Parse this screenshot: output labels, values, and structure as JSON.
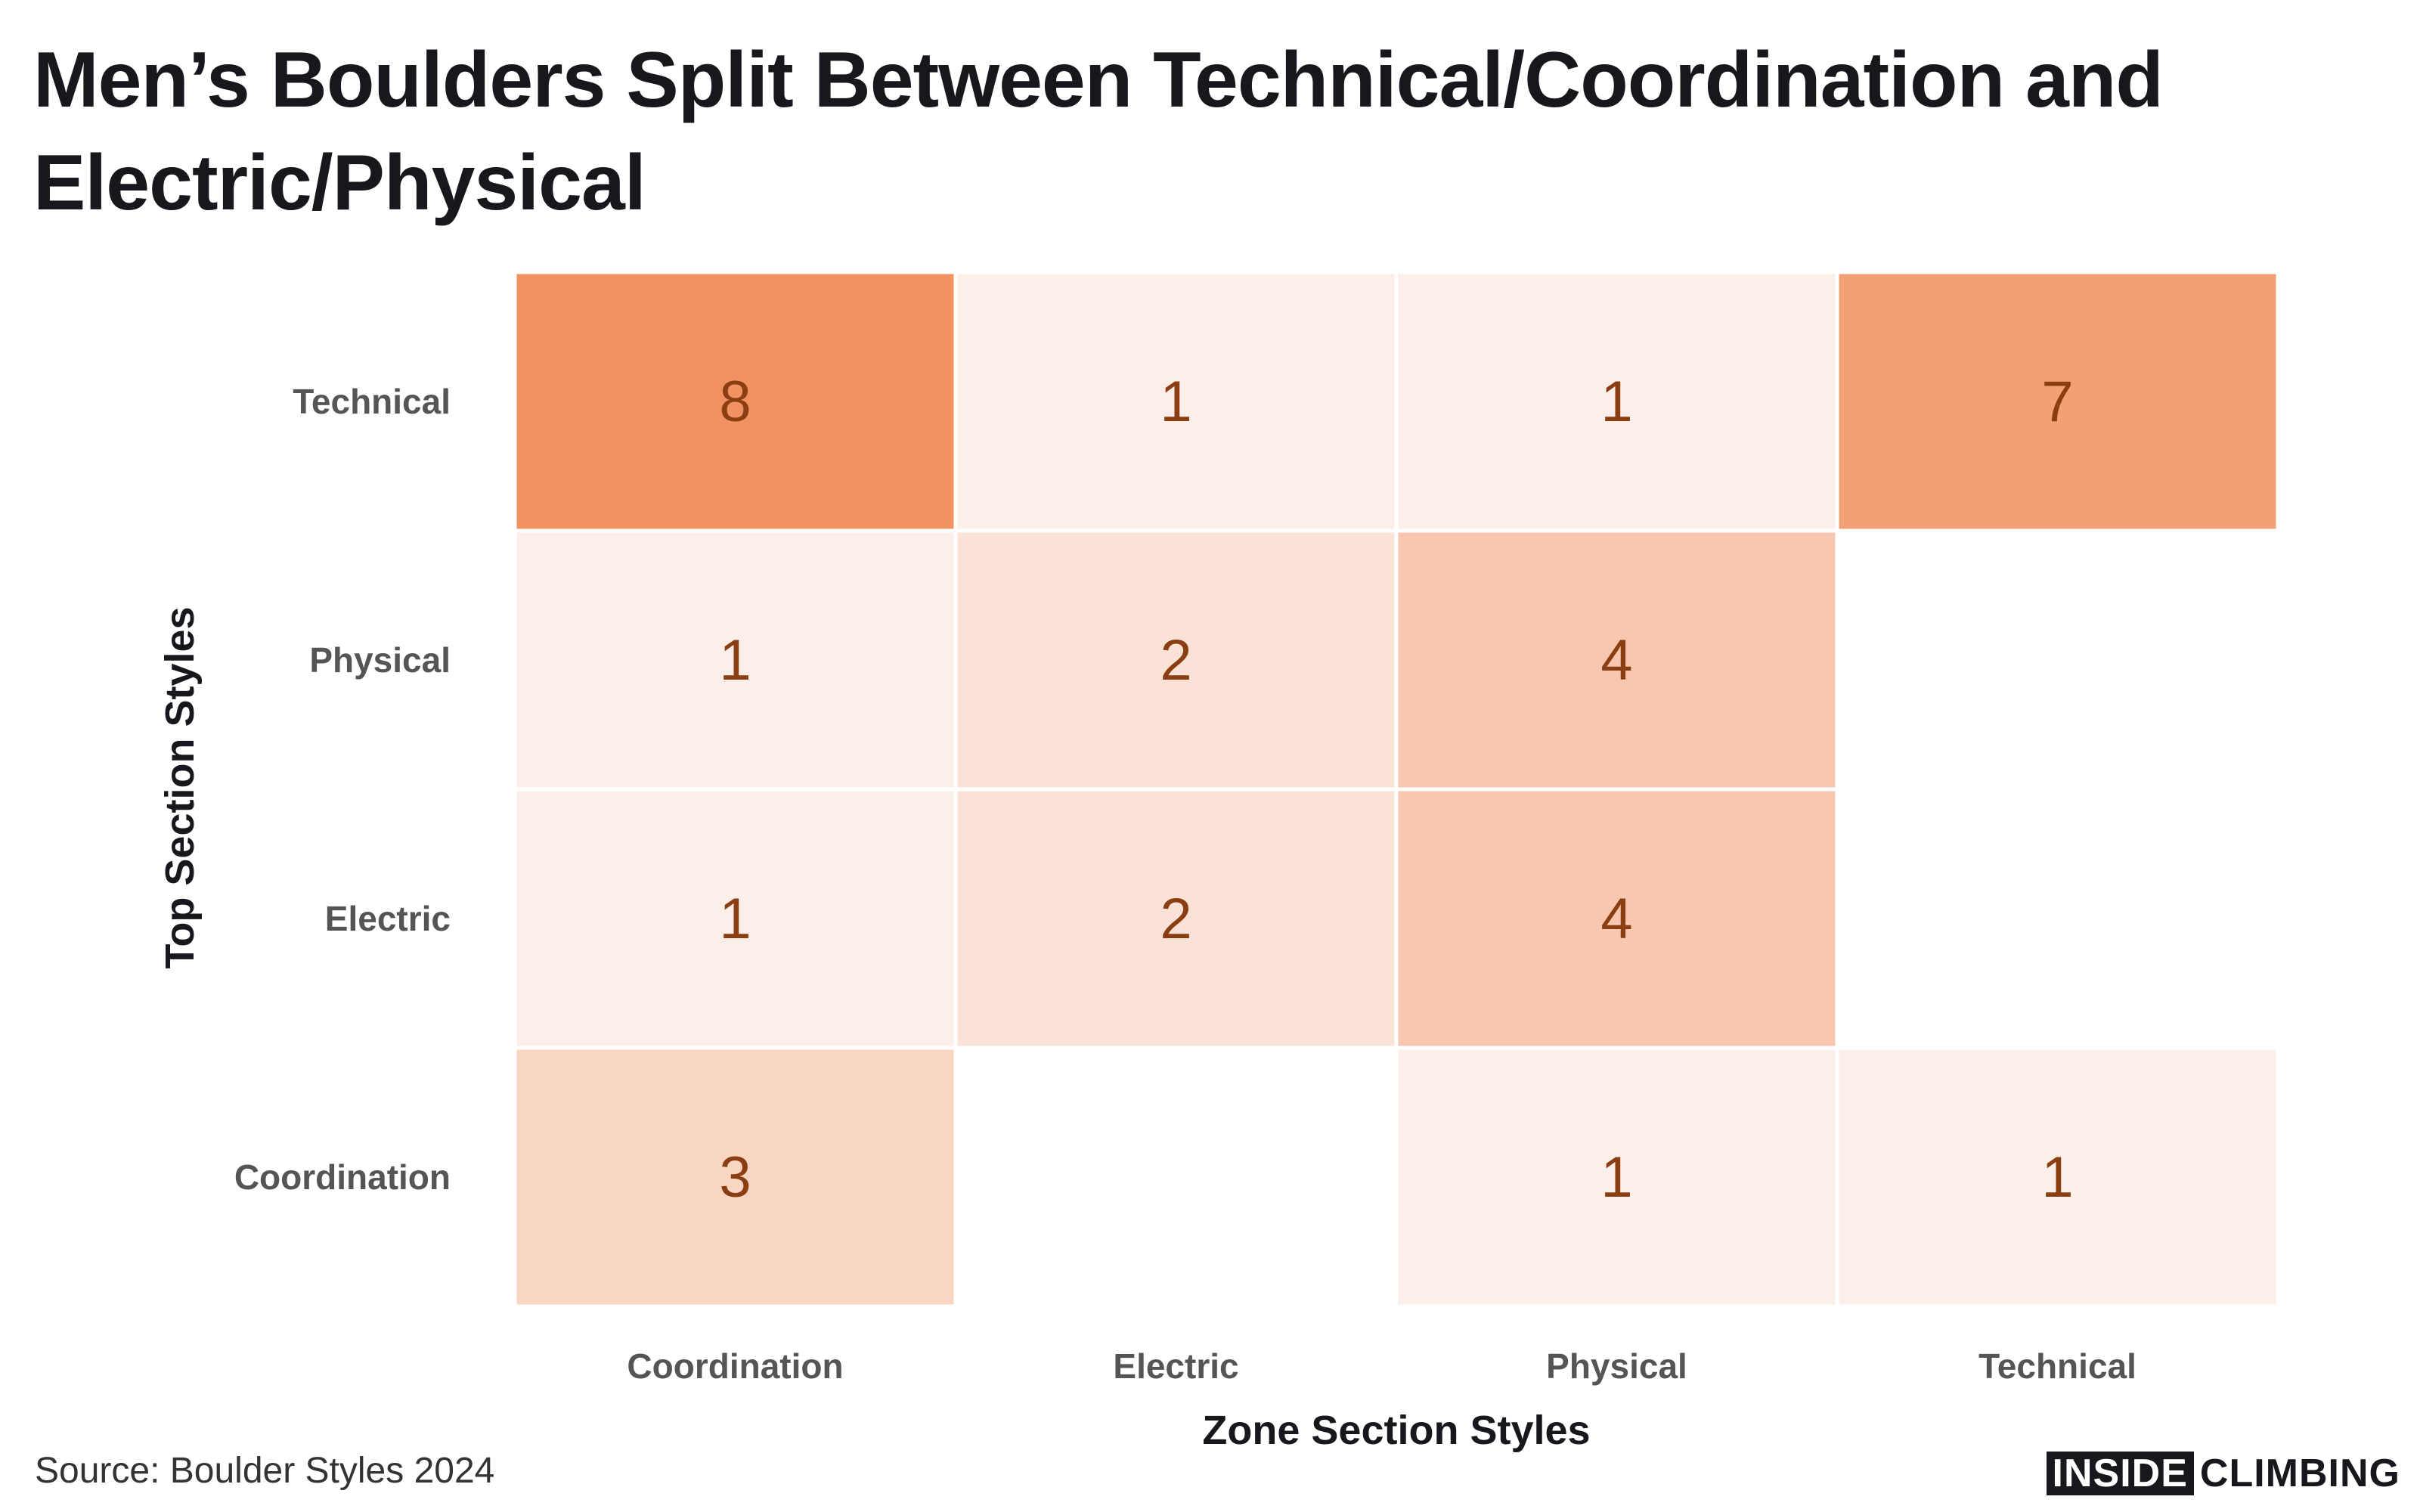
{
  "title": "Men’s Boulders Split Between Technical/Coordination and Electric/Physical",
  "source": "Source: Boulder Styles 2024",
  "brand": {
    "part1": "INSIDE",
    "part2": "CLIMBING"
  },
  "colors": {
    "scale_low": "#fcefea",
    "scale_high": "#f09361",
    "value_text": "#8b3e12",
    "axis_text": "#555555",
    "title_text": "#16181d"
  },
  "chart_data": {
    "type": "heatmap",
    "x_categories": [
      "Coordination",
      "Electric",
      "Physical",
      "Technical"
    ],
    "y_categories": [
      "Technical",
      "Physical",
      "Electric",
      "Coordination"
    ],
    "xlabel": "Zone Section Styles",
    "ylabel": "Top Section Styles",
    "value_range": [
      1,
      8
    ],
    "cells": [
      {
        "y": "Technical",
        "x": "Coordination",
        "value": 8
      },
      {
        "y": "Technical",
        "x": "Electric",
        "value": 1
      },
      {
        "y": "Technical",
        "x": "Physical",
        "value": 1
      },
      {
        "y": "Technical",
        "x": "Technical",
        "value": 7
      },
      {
        "y": "Physical",
        "x": "Coordination",
        "value": 1
      },
      {
        "y": "Physical",
        "x": "Electric",
        "value": 2
      },
      {
        "y": "Physical",
        "x": "Physical",
        "value": 4
      },
      {
        "y": "Electric",
        "x": "Coordination",
        "value": 1
      },
      {
        "y": "Electric",
        "x": "Electric",
        "value": 2
      },
      {
        "y": "Electric",
        "x": "Physical",
        "value": 4
      },
      {
        "y": "Coordination",
        "x": "Coordination",
        "value": 3
      },
      {
        "y": "Coordination",
        "x": "Physical",
        "value": 1
      },
      {
        "y": "Coordination",
        "x": "Technical",
        "value": 1
      }
    ]
  }
}
